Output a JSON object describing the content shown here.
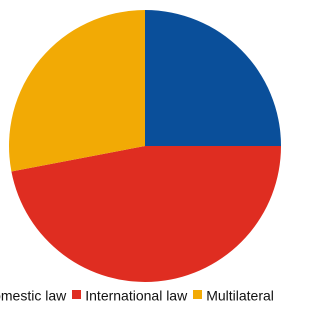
{
  "chart_data": {
    "type": "pie",
    "title": "",
    "categories": [
      "Domestic law",
      "International law",
      "Multilateral"
    ],
    "values": [
      25,
      47,
      28
    ],
    "colors": [
      "#0a4f9a",
      "#df2d21",
      "#f2aa05"
    ],
    "legend_position": "bottom",
    "start_angle_deg": 0,
    "direction": "clockwise"
  }
}
